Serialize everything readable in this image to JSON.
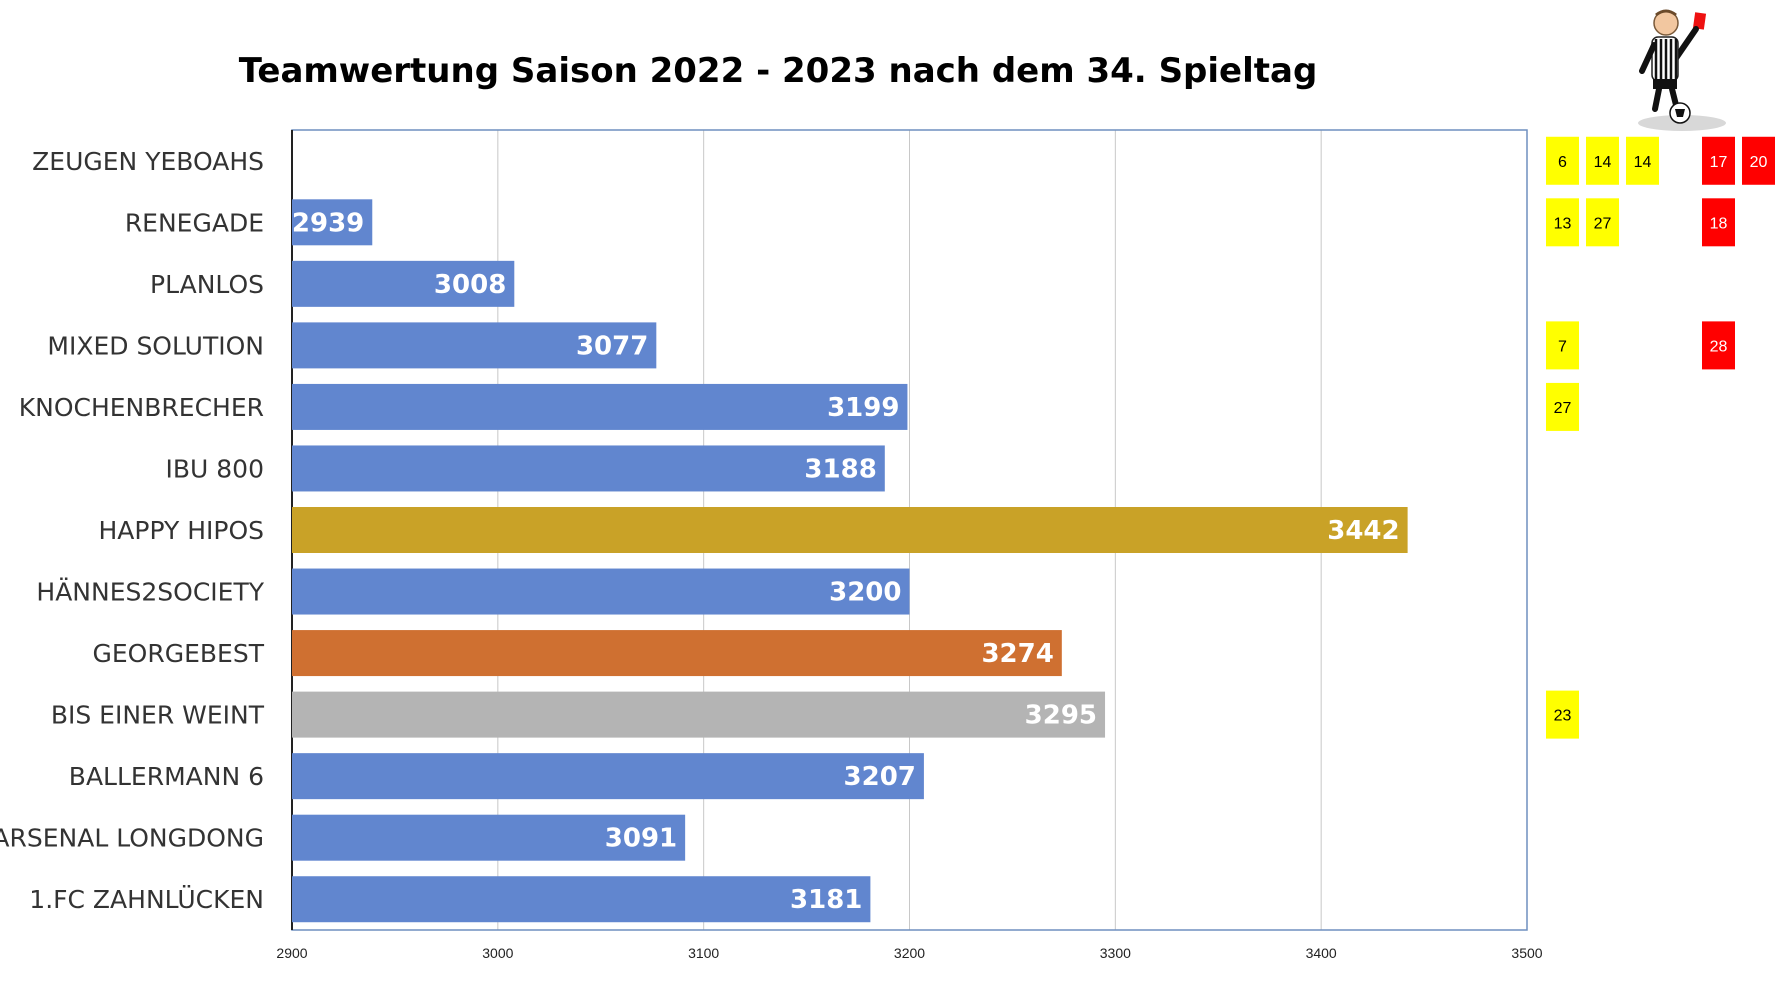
{
  "chart_data": {
    "type": "bar",
    "orientation": "horizontal",
    "title": "Teamwertung Saison 2022 - 2023 nach dem 34. Spieltag",
    "categories": [
      "ZEUGEN YEBOAHS",
      "RENEGADE",
      "PLANLOS",
      "MIXED SOLUTION",
      "KNOCHENBRECHER",
      "IBU 800",
      "HAPPY HIPOS",
      "HÄNNES2SOCIETY",
      "GEORGEBEST",
      "BIS EINER WEINT",
      "BALLERMANN 6",
      "ARSENAL LONGDONG",
      "1.FC ZAHNLÜCKEN"
    ],
    "values": [
      null,
      2939,
      3008,
      3077,
      3199,
      3188,
      3442,
      3200,
      3274,
      3295,
      3207,
      3091,
      3181
    ],
    "bar_colors": [
      "#6186cf",
      "#6186cf",
      "#6186cf",
      "#6186cf",
      "#6186cf",
      "#6186cf",
      "#c9a227",
      "#6186cf",
      "#cf7031",
      "#b4b4b4",
      "#6186cf",
      "#6186cf",
      "#6186cf"
    ],
    "xlim": [
      2900,
      3500
    ],
    "xticks": [
      2900,
      3000,
      3100,
      3200,
      3300,
      3400,
      3500
    ],
    "grid": true,
    "xlabel": "",
    "ylabel": ""
  },
  "cards": [
    {
      "row": 0,
      "items": [
        {
          "column": 0,
          "value": "6",
          "color": "yellow"
        },
        {
          "column": 1,
          "value": "14",
          "color": "yellow"
        },
        {
          "column": 2,
          "value": "14",
          "color": "yellow"
        },
        {
          "column": 4,
          "value": "17",
          "color": "red"
        },
        {
          "column": 5,
          "value": "20",
          "color": "red"
        }
      ]
    },
    {
      "row": 1,
      "items": [
        {
          "column": 0,
          "value": "13",
          "color": "yellow"
        },
        {
          "column": 1,
          "value": "27",
          "color": "yellow"
        },
        {
          "column": 4,
          "value": "18",
          "color": "red"
        }
      ]
    },
    {
      "row": 3,
      "items": [
        {
          "column": 0,
          "value": "7",
          "color": "yellow"
        },
        {
          "column": 4,
          "value": "28",
          "color": "red"
        }
      ]
    },
    {
      "row": 4,
      "items": [
        {
          "column": 0,
          "value": "27",
          "color": "yellow"
        }
      ]
    },
    {
      "row": 9,
      "items": [
        {
          "column": 0,
          "value": "23",
          "color": "yellow"
        }
      ]
    }
  ],
  "colors": {
    "yellow_card": "#ffff00",
    "red_card": "#ff0000",
    "plot_border": "#6f8fbf",
    "grid": "#c8c8c8"
  },
  "mascot": {
    "icon": "referee-icon"
  }
}
